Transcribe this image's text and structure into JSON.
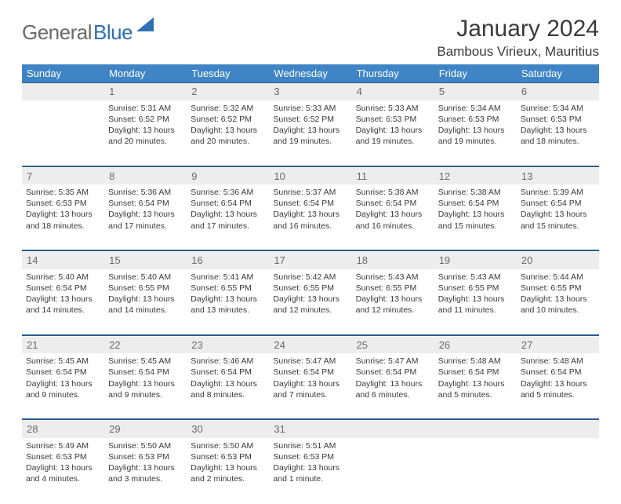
{
  "logo": {
    "part1": "General",
    "part2": "Blue"
  },
  "title": "January 2024",
  "location": "Bambous Virieux, Mauritius",
  "colors": {
    "header_bg": "#3f85c6",
    "header_border": "#275d8f",
    "daynum_bg": "#ededed",
    "text": "#3a3a3a",
    "logo_blue": "#2f6fb3",
    "logo_gray": "#6a6a6a"
  },
  "weekdays": [
    "Sunday",
    "Monday",
    "Tuesday",
    "Wednesday",
    "Thursday",
    "Friday",
    "Saturday"
  ],
  "weeks": [
    {
      "nums": [
        "",
        "1",
        "2",
        "3",
        "4",
        "5",
        "6"
      ],
      "cells": [
        null,
        {
          "sunrise": "Sunrise: 5:31 AM",
          "sunset": "Sunset: 6:52 PM",
          "day1": "Daylight: 13 hours",
          "day2": "and 20 minutes."
        },
        {
          "sunrise": "Sunrise: 5:32 AM",
          "sunset": "Sunset: 6:52 PM",
          "day1": "Daylight: 13 hours",
          "day2": "and 20 minutes."
        },
        {
          "sunrise": "Sunrise: 5:33 AM",
          "sunset": "Sunset: 6:52 PM",
          "day1": "Daylight: 13 hours",
          "day2": "and 19 minutes."
        },
        {
          "sunrise": "Sunrise: 5:33 AM",
          "sunset": "Sunset: 6:53 PM",
          "day1": "Daylight: 13 hours",
          "day2": "and 19 minutes."
        },
        {
          "sunrise": "Sunrise: 5:34 AM",
          "sunset": "Sunset: 6:53 PM",
          "day1": "Daylight: 13 hours",
          "day2": "and 19 minutes."
        },
        {
          "sunrise": "Sunrise: 5:34 AM",
          "sunset": "Sunset: 6:53 PM",
          "day1": "Daylight: 13 hours",
          "day2": "and 18 minutes."
        }
      ]
    },
    {
      "nums": [
        "7",
        "8",
        "9",
        "10",
        "11",
        "12",
        "13"
      ],
      "cells": [
        {
          "sunrise": "Sunrise: 5:35 AM",
          "sunset": "Sunset: 6:53 PM",
          "day1": "Daylight: 13 hours",
          "day2": "and 18 minutes."
        },
        {
          "sunrise": "Sunrise: 5:36 AM",
          "sunset": "Sunset: 6:54 PM",
          "day1": "Daylight: 13 hours",
          "day2": "and 17 minutes."
        },
        {
          "sunrise": "Sunrise: 5:36 AM",
          "sunset": "Sunset: 6:54 PM",
          "day1": "Daylight: 13 hours",
          "day2": "and 17 minutes."
        },
        {
          "sunrise": "Sunrise: 5:37 AM",
          "sunset": "Sunset: 6:54 PM",
          "day1": "Daylight: 13 hours",
          "day2": "and 16 minutes."
        },
        {
          "sunrise": "Sunrise: 5:38 AM",
          "sunset": "Sunset: 6:54 PM",
          "day1": "Daylight: 13 hours",
          "day2": "and 16 minutes."
        },
        {
          "sunrise": "Sunrise: 5:38 AM",
          "sunset": "Sunset: 6:54 PM",
          "day1": "Daylight: 13 hours",
          "day2": "and 15 minutes."
        },
        {
          "sunrise": "Sunrise: 5:39 AM",
          "sunset": "Sunset: 6:54 PM",
          "day1": "Daylight: 13 hours",
          "day2": "and 15 minutes."
        }
      ]
    },
    {
      "nums": [
        "14",
        "15",
        "16",
        "17",
        "18",
        "19",
        "20"
      ],
      "cells": [
        {
          "sunrise": "Sunrise: 5:40 AM",
          "sunset": "Sunset: 6:54 PM",
          "day1": "Daylight: 13 hours",
          "day2": "and 14 minutes."
        },
        {
          "sunrise": "Sunrise: 5:40 AM",
          "sunset": "Sunset: 6:55 PM",
          "day1": "Daylight: 13 hours",
          "day2": "and 14 minutes."
        },
        {
          "sunrise": "Sunrise: 5:41 AM",
          "sunset": "Sunset: 6:55 PM",
          "day1": "Daylight: 13 hours",
          "day2": "and 13 minutes."
        },
        {
          "sunrise": "Sunrise: 5:42 AM",
          "sunset": "Sunset: 6:55 PM",
          "day1": "Daylight: 13 hours",
          "day2": "and 12 minutes."
        },
        {
          "sunrise": "Sunrise: 5:43 AM",
          "sunset": "Sunset: 6:55 PM",
          "day1": "Daylight: 13 hours",
          "day2": "and 12 minutes."
        },
        {
          "sunrise": "Sunrise: 5:43 AM",
          "sunset": "Sunset: 6:55 PM",
          "day1": "Daylight: 13 hours",
          "day2": "and 11 minutes."
        },
        {
          "sunrise": "Sunrise: 5:44 AM",
          "sunset": "Sunset: 6:55 PM",
          "day1": "Daylight: 13 hours",
          "day2": "and 10 minutes."
        }
      ]
    },
    {
      "nums": [
        "21",
        "22",
        "23",
        "24",
        "25",
        "26",
        "27"
      ],
      "cells": [
        {
          "sunrise": "Sunrise: 5:45 AM",
          "sunset": "Sunset: 6:54 PM",
          "day1": "Daylight: 13 hours",
          "day2": "and 9 minutes."
        },
        {
          "sunrise": "Sunrise: 5:45 AM",
          "sunset": "Sunset: 6:54 PM",
          "day1": "Daylight: 13 hours",
          "day2": "and 9 minutes."
        },
        {
          "sunrise": "Sunrise: 5:46 AM",
          "sunset": "Sunset: 6:54 PM",
          "day1": "Daylight: 13 hours",
          "day2": "and 8 minutes."
        },
        {
          "sunrise": "Sunrise: 5:47 AM",
          "sunset": "Sunset: 6:54 PM",
          "day1": "Daylight: 13 hours",
          "day2": "and 7 minutes."
        },
        {
          "sunrise": "Sunrise: 5:47 AM",
          "sunset": "Sunset: 6:54 PM",
          "day1": "Daylight: 13 hours",
          "day2": "and 6 minutes."
        },
        {
          "sunrise": "Sunrise: 5:48 AM",
          "sunset": "Sunset: 6:54 PM",
          "day1": "Daylight: 13 hours",
          "day2": "and 5 minutes."
        },
        {
          "sunrise": "Sunrise: 5:48 AM",
          "sunset": "Sunset: 6:54 PM",
          "day1": "Daylight: 13 hours",
          "day2": "and 5 minutes."
        }
      ]
    },
    {
      "nums": [
        "28",
        "29",
        "30",
        "31",
        "",
        "",
        ""
      ],
      "cells": [
        {
          "sunrise": "Sunrise: 5:49 AM",
          "sunset": "Sunset: 6:53 PM",
          "day1": "Daylight: 13 hours",
          "day2": "and 4 minutes."
        },
        {
          "sunrise": "Sunrise: 5:50 AM",
          "sunset": "Sunset: 6:53 PM",
          "day1": "Daylight: 13 hours",
          "day2": "and 3 minutes."
        },
        {
          "sunrise": "Sunrise: 5:50 AM",
          "sunset": "Sunset: 6:53 PM",
          "day1": "Daylight: 13 hours",
          "day2": "and 2 minutes."
        },
        {
          "sunrise": "Sunrise: 5:51 AM",
          "sunset": "Sunset: 6:53 PM",
          "day1": "Daylight: 13 hours",
          "day2": "and 1 minute."
        },
        null,
        null,
        null
      ]
    }
  ]
}
